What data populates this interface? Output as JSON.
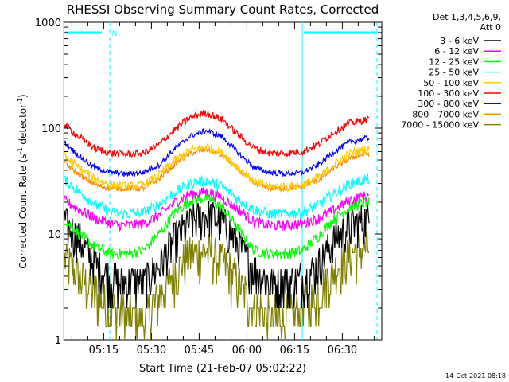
{
  "chart_data": {
    "type": "line",
    "title": "RHESSI Observing Summary Count Rates, Corrected",
    "xlabel": "Start Time (21-Feb-07 05:02:22)",
    "ylabel_parts": [
      "Corrected Count Rate (s",
      "-1",
      " detector",
      "-1",
      ")"
    ],
    "y_scale": "log",
    "ylim": [
      1,
      1000
    ],
    "xlim_minutes": [
      0,
      100
    ],
    "x_ticks": [
      {
        "label": "05:15",
        "minutes": 12.6
      },
      {
        "label": "05:30",
        "minutes": 27.6
      },
      {
        "label": "05:45",
        "minutes": 42.6
      },
      {
        "label": "06:00",
        "minutes": 57.6
      },
      {
        "label": "06:15",
        "minutes": 72.6
      },
      {
        "label": "06:30",
        "minutes": 87.6
      }
    ],
    "y_ticks": [
      {
        "label": "1",
        "value": 1
      },
      {
        "label": "10",
        "value": 10
      },
      {
        "label": "100",
        "value": 100
      },
      {
        "label": "1000",
        "value": 1000
      }
    ],
    "legend_header": [
      "Det 1,3,4,5,6,9,",
      "Att 0"
    ],
    "series": [
      {
        "name": "3 - 6 keV",
        "color": "#000000",
        "minutes": [
          0,
          5,
          10,
          15,
          20,
          25,
          30,
          35,
          40,
          45,
          50,
          55,
          60,
          65,
          70,
          75,
          80,
          85,
          90,
          95
        ],
        "values": [
          13,
          9,
          5,
          3.8,
          3.5,
          3.5,
          5,
          9,
          13,
          15.5,
          13,
          8,
          4.5,
          3.5,
          3.5,
          3.8,
          5,
          9,
          12,
          14
        ],
        "noise": 0.45
      },
      {
        "name": "6 - 12 keV",
        "color": "#ff00ff",
        "minutes": [
          0,
          5,
          10,
          15,
          20,
          25,
          30,
          35,
          40,
          45,
          50,
          55,
          60,
          65,
          70,
          75,
          80,
          85,
          90,
          95
        ],
        "values": [
          21,
          17,
          14,
          12.5,
          12,
          12.5,
          15,
          20,
          24,
          25,
          22,
          17,
          13,
          12,
          12,
          12.5,
          14,
          17,
          21,
          23
        ],
        "noise": 0.12
      },
      {
        "name": "12 - 25 keV",
        "color": "#00ff00",
        "minutes": [
          0,
          5,
          10,
          15,
          20,
          25,
          30,
          35,
          40,
          45,
          50,
          55,
          60,
          65,
          70,
          75,
          80,
          85,
          90,
          95
        ],
        "values": [
          14,
          10,
          7.5,
          6.5,
          6.5,
          7,
          10,
          16,
          21,
          22,
          18,
          11,
          7,
          6.5,
          6.5,
          7,
          9.5,
          14,
          18,
          20
        ],
        "noise": 0.12
      },
      {
        "name": "25 - 50 keV",
        "color": "#00ffff",
        "minutes": [
          0,
          5,
          10,
          15,
          20,
          25,
          30,
          35,
          40,
          45,
          50,
          55,
          60,
          65,
          70,
          75,
          80,
          85,
          90,
          95
        ],
        "values": [
          33,
          25,
          19,
          16,
          15.5,
          16,
          19,
          25,
          30,
          32,
          28,
          21,
          17,
          15.5,
          15.5,
          16,
          19,
          24,
          30,
          33
        ],
        "noise": 0.12
      },
      {
        "name": "50 - 100 keV",
        "color": "#ffcc00",
        "minutes": [
          0,
          5,
          10,
          15,
          20,
          25,
          30,
          35,
          40,
          45,
          50,
          55,
          60,
          65,
          70,
          75,
          80,
          85,
          90,
          95
        ],
        "values": [
          55,
          42,
          33,
          29,
          28,
          29,
          36,
          50,
          62,
          67,
          58,
          42,
          31,
          28,
          28,
          29,
          34,
          45,
          58,
          63
        ],
        "noise": 0.1
      },
      {
        "name": "100 - 300 keV",
        "color": "#ff0000",
        "minutes": [
          0,
          5,
          10,
          15,
          20,
          25,
          30,
          35,
          40,
          45,
          50,
          55,
          60,
          65,
          70,
          75,
          80,
          85,
          90,
          95
        ],
        "values": [
          110,
          82,
          64,
          58,
          57,
          58,
          70,
          98,
          127,
          140,
          120,
          86,
          64,
          58,
          58,
          60,
          70,
          92,
          112,
          120
        ],
        "noise": 0.08
      },
      {
        "name": "300 - 800 keV",
        "color": "#0000ff",
        "minutes": [
          0,
          5,
          10,
          15,
          20,
          25,
          30,
          35,
          40,
          45,
          50,
          55,
          60,
          65,
          70,
          75,
          80,
          85,
          90,
          95
        ],
        "values": [
          75,
          54,
          42,
          38,
          37,
          38,
          45,
          64,
          85,
          95,
          82,
          58,
          42,
          38,
          37,
          38,
          45,
          60,
          74,
          80
        ],
        "noise": 0.06
      },
      {
        "name": "800 - 7000 keV",
        "color": "#ff8800",
        "minutes": [
          0,
          5,
          10,
          15,
          20,
          25,
          30,
          35,
          40,
          45,
          50,
          55,
          60,
          65,
          70,
          75,
          80,
          85,
          90,
          95
        ],
        "values": [
          48,
          36,
          29,
          27,
          27,
          27,
          33,
          46,
          58,
          63,
          55,
          40,
          30,
          27,
          27,
          28,
          32,
          42,
          52,
          57
        ],
        "noise": 0.06
      },
      {
        "name": "7000 - 15000 keV",
        "color": "#808000",
        "minutes": [
          0,
          5,
          10,
          15,
          20,
          25,
          30,
          35,
          40,
          45,
          50,
          55,
          60,
          65,
          70,
          75,
          80,
          85,
          90,
          95
        ],
        "values": [
          6,
          4,
          2.8,
          2,
          1.6,
          1.6,
          2.5,
          4.5,
          6.5,
          7,
          5.5,
          3.5,
          2,
          1.6,
          1.6,
          2,
          2.8,
          4.5,
          6.5,
          7.5
        ],
        "noise": 0.5
      }
    ],
    "annotations": [
      {
        "type": "segment",
        "color": "#00ffff",
        "label": "N",
        "start_minutes": 0,
        "end_minutes": 14.5
      },
      {
        "type": "segment",
        "color": "#00ffff",
        "label": "",
        "start_minutes": 75,
        "end_minutes": 98.5
      }
    ],
    "vertical_markers": [
      {
        "minutes": 0,
        "style": "solid",
        "color": "#00ffff"
      },
      {
        "minutes": 14.5,
        "style": "dashed",
        "color": "#00ffff"
      },
      {
        "minutes": 75,
        "style": "solid",
        "color": "#00ffff"
      },
      {
        "minutes": 98.5,
        "style": "dashed",
        "color": "#00ffff"
      }
    ],
    "footer_timestamp": "14-Oct-2021 08:18"
  }
}
